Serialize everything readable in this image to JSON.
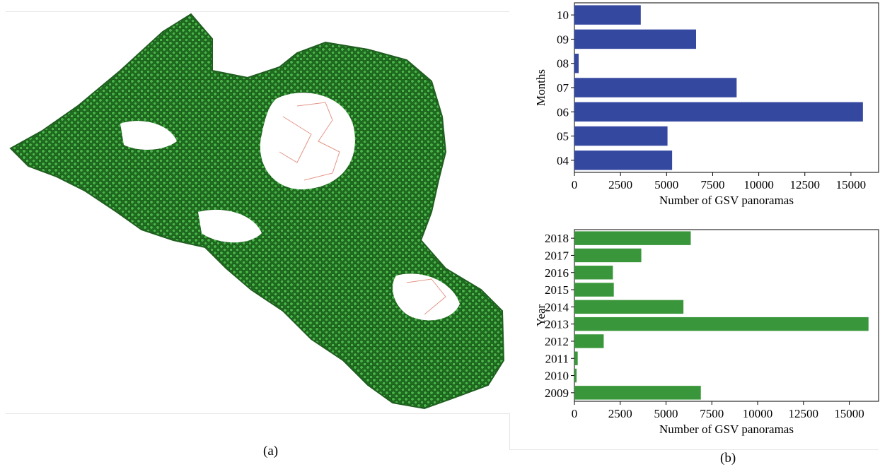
{
  "captions": {
    "a": "(a)",
    "b": "(b)"
  },
  "colors": {
    "map_points": "#2e9a2e",
    "map_roads": "#e08a7a",
    "months_bar": "#3448a0",
    "year_bar": "#3a963a"
  },
  "chart_data": [
    {
      "type": "bar",
      "orientation": "horizontal",
      "categories": [
        "04",
        "05",
        "06",
        "07",
        "08",
        "09",
        "10"
      ],
      "values": [
        5300,
        5050,
        15650,
        8800,
        230,
        6600,
        3600
      ],
      "xlabel": "Number of GSV panoramas",
      "ylabel": "Months",
      "xlim": [
        0,
        16500
      ],
      "xticks": [
        0,
        2500,
        5000,
        7500,
        10000,
        12500,
        15000
      ],
      "color": "#3448a0"
    },
    {
      "type": "bar",
      "orientation": "horizontal",
      "categories": [
        "2009",
        "2010",
        "2011",
        "2012",
        "2013",
        "2014",
        "2015",
        "2016",
        "2017",
        "2018"
      ],
      "values": [
        6900,
        120,
        180,
        1600,
        16050,
        5950,
        2150,
        2100,
        3650,
        6350
      ],
      "xlabel": "Number of GSV panoramas",
      "ylabel": "Year",
      "xlim": [
        0,
        16600
      ],
      "xticks": [
        0,
        2500,
        5000,
        7500,
        10000,
        12500,
        15000
      ],
      "color": "#3a963a"
    }
  ]
}
